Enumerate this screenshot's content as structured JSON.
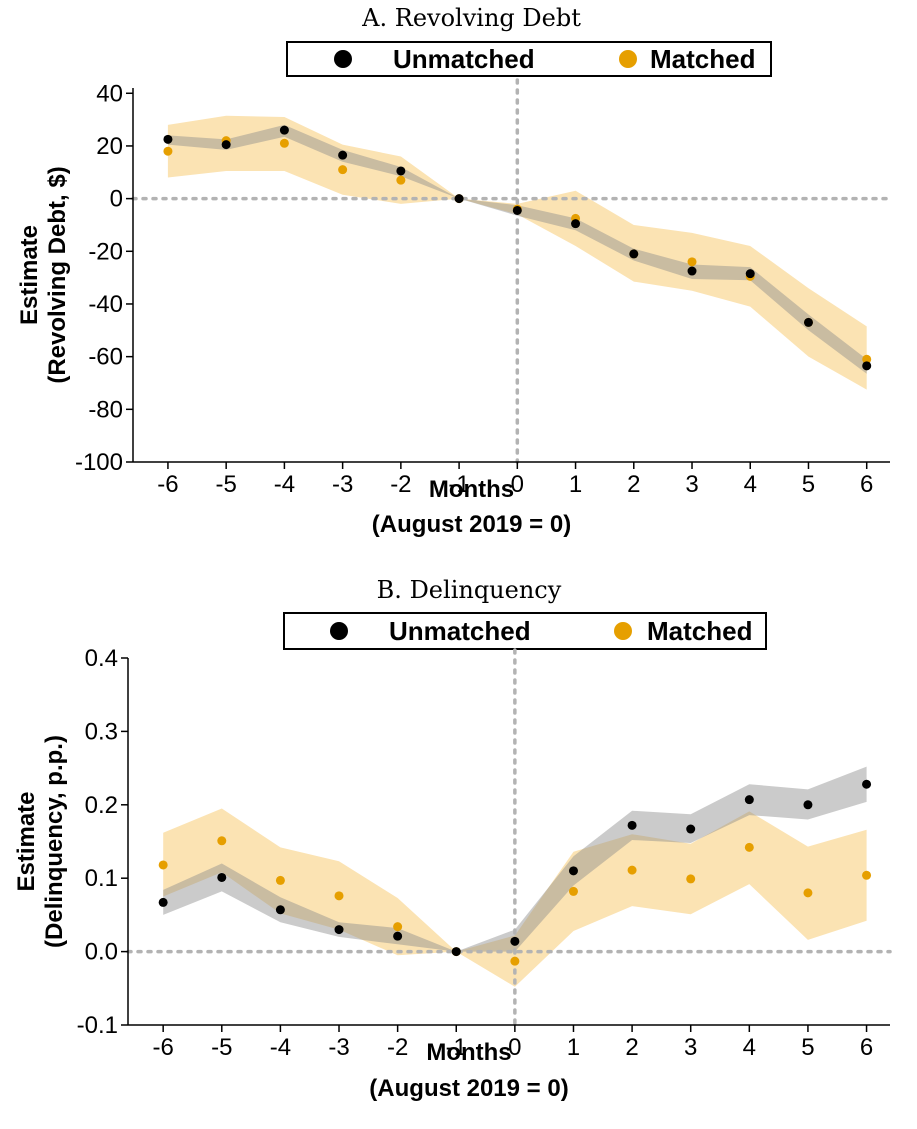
{
  "colors": {
    "unmatched": "#000000",
    "matched": "#E69F00",
    "unmatched_band": "#bdbdbd",
    "matched_band": "#FBE3B3",
    "refline": "#b3b3b3"
  },
  "chart_data": [
    {
      "type": "scatter",
      "title": "A. Revolving Debt",
      "xlabel": "Months",
      "xlabel2": "(August 2019 = 0)",
      "ylabel": "Estimate",
      "ylabel2": "(Revolving Debt, $)",
      "legend": {
        "position": "top",
        "entries": [
          "Unmatched",
          "Matched"
        ]
      },
      "x": [
        -6,
        -5,
        -4,
        -3,
        -2,
        -1,
        0,
        1,
        2,
        3,
        4,
        5,
        6
      ],
      "xlim": [
        -6.6,
        6.4
      ],
      "ylim": [
        -100,
        42
      ],
      "xticks": [
        "-6",
        "-5",
        "-4",
        "-3",
        "-2",
        "-1",
        "0",
        "1",
        "2",
        "3",
        "4",
        "5",
        "6"
      ],
      "yticks": [
        40,
        20,
        0,
        -20,
        -40,
        -60,
        -80,
        -100
      ],
      "yticklabels": [
        "40",
        "20",
        "0",
        "-20",
        "-40",
        "-60",
        "-80",
        "-100"
      ],
      "reference_lines": {
        "x": 0,
        "y": 0
      },
      "series": [
        {
          "name": "Unmatched",
          "values": [
            22.5,
            20.5,
            26.0,
            16.5,
            10.5,
            0,
            -4.5,
            -9.5,
            -21.0,
            -27.5,
            -28.5,
            -47.0,
            -63.5
          ],
          "ci_low": [
            20.5,
            18.5,
            23.5,
            14.0,
            8.5,
            0,
            -6.5,
            -12.0,
            -23.5,
            -30.5,
            -31.0,
            -50.0,
            -66.5
          ],
          "ci_high": [
            24.0,
            22.5,
            28.0,
            18.5,
            12.0,
            0,
            -2.5,
            -7.5,
            -19.0,
            -25.0,
            -26.0,
            -44.0,
            -61.0
          ]
        },
        {
          "name": "Matched",
          "values": [
            18.0,
            22.0,
            21.0,
            11.0,
            7.0,
            0,
            -4.0,
            -7.5,
            -21.0,
            -24.0,
            -29.5,
            -47.0,
            -61.0
          ],
          "ci_low": [
            8.0,
            10.5,
            10.5,
            1.5,
            -2.0,
            0,
            -6.0,
            -18.0,
            -31.5,
            -35.0,
            -41.0,
            -60.0,
            -72.5
          ],
          "ci_high": [
            28.0,
            31.5,
            31.0,
            20.5,
            16.0,
            0,
            -2.0,
            3.0,
            -10.0,
            -13.0,
            -18.0,
            -34.0,
            -48.5
          ]
        }
      ]
    },
    {
      "type": "scatter",
      "title": "B. Delinquency",
      "xlabel": "Months",
      "xlabel2": "(August 2019 = 0)",
      "ylabel": "Estimate",
      "ylabel2": "(Delinquency, p.p.)",
      "legend": {
        "position": "top",
        "entries": [
          "Unmatched",
          "Matched"
        ]
      },
      "x": [
        -6,
        -5,
        -4,
        -3,
        -2,
        -1,
        0,
        1,
        2,
        3,
        4,
        5,
        6
      ],
      "xlim": [
        -6.6,
        6.4
      ],
      "ylim": [
        -0.1,
        0.4
      ],
      "xticks": [
        "-6",
        "-5",
        "-4",
        "-3",
        "-2",
        "-1",
        "0",
        "1",
        "2",
        "3",
        "4",
        "5",
        "6"
      ],
      "yticks": [
        0.4,
        0.3,
        0.2,
        0.1,
        0.0,
        -0.1
      ],
      "yticklabels": [
        "0.4",
        "0.3",
        "0.2",
        "0.1",
        "0.0",
        "-0.1"
      ],
      "reference_lines": {
        "x": 0,
        "y": 0
      },
      "series": [
        {
          "name": "Unmatched",
          "values": [
            0.067,
            0.101,
            0.057,
            0.03,
            0.021,
            0.0,
            0.014,
            0.11,
            0.172,
            0.167,
            0.207,
            0.2,
            0.228
          ],
          "ci_low": [
            0.05,
            0.082,
            0.04,
            0.02,
            0.01,
            0.0,
            0.0,
            0.09,
            0.152,
            0.148,
            0.186,
            0.18,
            0.204
          ],
          "ci_high": [
            0.084,
            0.12,
            0.074,
            0.04,
            0.032,
            0.0,
            0.03,
            0.13,
            0.192,
            0.187,
            0.228,
            0.221,
            0.252
          ]
        },
        {
          "name": "Matched",
          "values": [
            0.118,
            0.151,
            0.097,
            0.076,
            0.034,
            0.0,
            -0.013,
            0.082,
            0.111,
            0.099,
            0.142,
            0.08,
            0.104
          ],
          "ci_low": [
            0.075,
            0.108,
            0.052,
            0.03,
            -0.005,
            0.0,
            -0.048,
            0.028,
            0.062,
            0.051,
            0.092,
            0.016,
            0.042
          ],
          "ci_high": [
            0.162,
            0.195,
            0.142,
            0.123,
            0.073,
            0.0,
            0.022,
            0.136,
            0.16,
            0.147,
            0.191,
            0.143,
            0.166
          ]
        }
      ]
    }
  ]
}
